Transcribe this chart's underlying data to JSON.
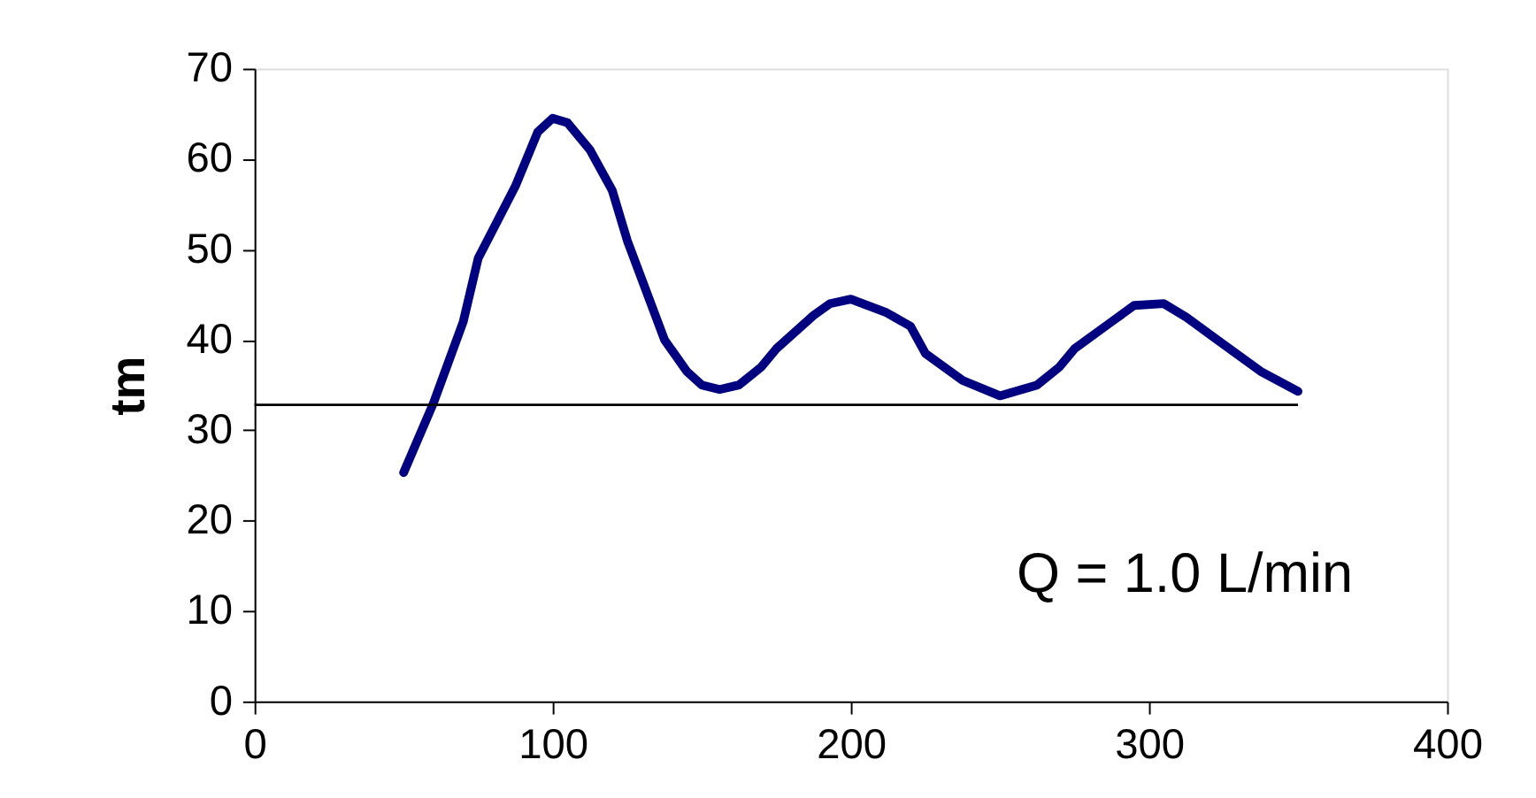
{
  "chart_data": {
    "type": "line",
    "ylabel": "tm",
    "x": [
      50,
      60,
      70,
      75,
      87.5,
      95,
      100,
      105,
      112.5,
      120,
      125,
      137.5,
      145,
      150,
      156,
      162.5,
      170,
      175,
      187.5,
      193,
      200,
      212,
      220,
      225,
      237.5,
      250,
      262.5,
      270,
      275,
      287.5,
      295,
      305,
      312.5,
      325,
      337.5,
      350
    ],
    "series": [
      {
        "color": "#000080",
        "values": [
          25.3,
          33,
          42,
          49,
          57,
          63,
          64.5,
          64,
          61,
          56.5,
          51,
          40,
          36.5,
          35,
          34.5,
          35,
          37,
          39,
          42.7,
          44,
          44.5,
          43,
          41.5,
          38.5,
          35.5,
          33.8,
          35,
          37,
          39,
          42,
          43.8,
          44,
          42.5,
          39.5,
          36.5,
          34.3
        ]
      }
    ],
    "xlim": [
      0,
      400
    ],
    "xticks": [
      0,
      100,
      200,
      300,
      400
    ],
    "ylim": [
      0,
      70
    ],
    "yticks": [
      0,
      10,
      20,
      30,
      40,
      50,
      60,
      70
    ],
    "ref_lines": [
      {
        "axis": "y",
        "value": 32.8,
        "color": "#000000"
      }
    ],
    "annotations": [
      "Q = 1.0 L/min"
    ],
    "grid": false,
    "marker": "none",
    "line_style": "solid"
  }
}
